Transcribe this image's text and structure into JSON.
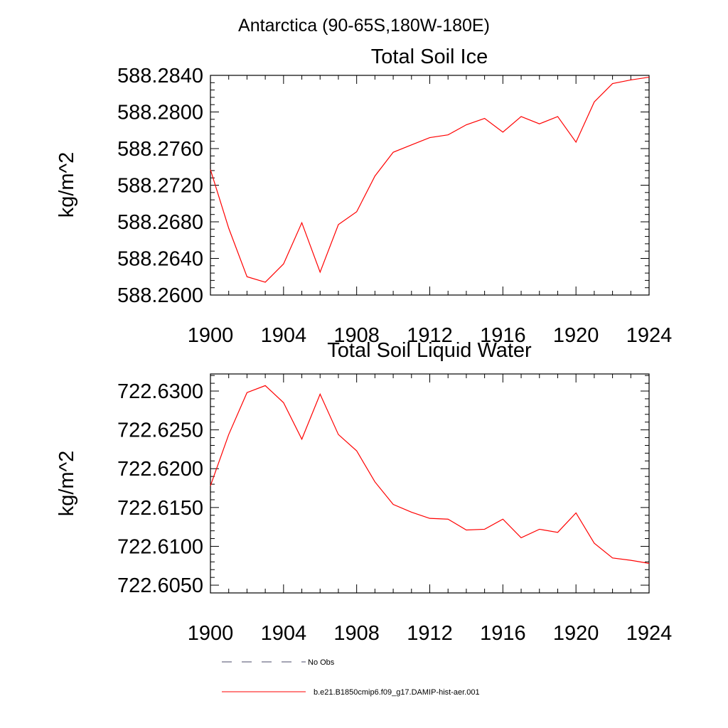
{
  "page": {
    "header": "Antarctica (90-65S,180W-180E)"
  },
  "chart_data": [
    {
      "type": "line",
      "title": "Total Soil Ice",
      "ylabel": "kg/m^2",
      "xlabel": "",
      "xlim": [
        1900,
        1924
      ],
      "ylim": [
        588.26,
        588.284
      ],
      "x_ticks": [
        "1900",
        "1904",
        "1908",
        "1912",
        "1916",
        "1920",
        "1924"
      ],
      "y_ticks": [
        "588.2600",
        "588.2640",
        "588.2680",
        "588.2720",
        "588.2760",
        "588.2800",
        "588.2840"
      ],
      "grid": false,
      "series": [
        {
          "color": "#ff0000",
          "x": [
            1900,
            1901,
            1902,
            1903,
            1904,
            1905,
            1906,
            1907,
            1908,
            1909,
            1910,
            1911,
            1912,
            1913,
            1914,
            1915,
            1916,
            1917,
            1918,
            1919,
            1920,
            1921,
            1922,
            1923,
            1924
          ],
          "values": [
            588.2737,
            588.2673,
            588.262,
            588.2614,
            588.2634,
            588.2679,
            588.2625,
            588.2677,
            588.2691,
            588.273,
            588.2756,
            588.2764,
            588.2772,
            588.2775,
            588.2786,
            588.2793,
            588.2778,
            588.2795,
            588.2787,
            588.2795,
            588.2767,
            588.2811,
            588.2831,
            588.2835,
            588.2838
          ]
        }
      ]
    },
    {
      "type": "line",
      "title": "Total Soil Liquid Water",
      "ylabel": "kg/m^2",
      "xlabel": "",
      "xlim": [
        1900,
        1924
      ],
      "ylim": [
        722.604,
        722.6322
      ],
      "x_ticks": [
        "1900",
        "1904",
        "1908",
        "1912",
        "1916",
        "1920",
        "1924"
      ],
      "y_ticks": [
        "722.6050",
        "722.6100",
        "722.6150",
        "722.6200",
        "722.6250",
        "722.6300"
      ],
      "grid": false,
      "series": [
        {
          "color": "#ff0000",
          "x": [
            1900,
            1901,
            1902,
            1903,
            1904,
            1905,
            1906,
            1907,
            1908,
            1909,
            1910,
            1911,
            1912,
            1913,
            1914,
            1915,
            1916,
            1917,
            1918,
            1919,
            1920,
            1921,
            1922,
            1923,
            1924
          ],
          "values": [
            722.6178,
            722.6244,
            722.6298,
            722.6307,
            722.6285,
            722.6238,
            722.6296,
            722.6244,
            722.6223,
            722.6183,
            722.6154,
            722.6144,
            722.6136,
            722.6135,
            722.6121,
            722.6122,
            722.6135,
            722.6111,
            722.6122,
            722.6118,
            722.6143,
            722.6104,
            722.6085,
            722.6082,
            722.6078
          ]
        }
      ]
    }
  ],
  "legend": {
    "placement": "bottom",
    "items": [
      {
        "label": "No Obs",
        "style": "dashed",
        "color": "#4a4a6a"
      },
      {
        "label": "b.e21.B1850cmip6.f09_g17.DAMIP-hist-aer.001",
        "style": "solid",
        "color": "#ff0000"
      }
    ]
  }
}
